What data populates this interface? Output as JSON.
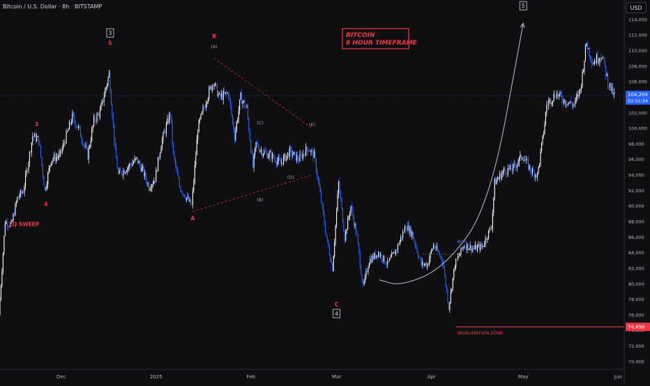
{
  "header": {
    "symbol_title": "Bitcoin / U.S. Dollar · 8h · BITSTAMP",
    "currency": "USD"
  },
  "colors": {
    "background": "#0f0f12",
    "candle_up": "#ffffff",
    "candle_down": "#2962ff",
    "annotation_red": "#f23645",
    "label_gray": "#9598a1",
    "price_badge": "#2962ff",
    "invalidation_badge": "#f23645"
  },
  "chart_data": {
    "type": "candlestick",
    "y_axis": {
      "ticks": [
        70000,
        72000,
        74000,
        76000,
        78000,
        80000,
        82000,
        84000,
        86000,
        88000,
        90000,
        92000,
        94000,
        96000,
        98000,
        100000,
        102000,
        104000,
        106000,
        108000,
        110000,
        112000,
        114000
      ],
      "tick_labels": [
        "70,000",
        "72,000",
        "74,000",
        "76,000",
        "78,000",
        "80,000",
        "82,000",
        "84,000",
        "86,000",
        "88,000",
        "90,000",
        "92,000",
        "94,000",
        "96,000",
        "98,000",
        "100,000",
        "102,000",
        "104,000",
        "106,000",
        "108,000",
        "110,000",
        "112,000",
        "114,000"
      ],
      "range": [
        69000,
        116500
      ]
    },
    "x_axis": {
      "labels": [
        {
          "text": "Dec",
          "date": "2024-12-01"
        },
        {
          "text": "2025",
          "date": "2025-01-01"
        },
        {
          "text": "Feb",
          "date": "2025-02-01"
        },
        {
          "text": "Mar",
          "date": "2025-03-01"
        },
        {
          "text": "Apr",
          "date": "2025-04-01"
        },
        {
          "text": "May",
          "date": "2025-05-01"
        },
        {
          "text": "Jun",
          "date": "2025-06-01"
        }
      ],
      "range": [
        "2024-11-11",
        "2025-06-03"
      ]
    },
    "price_path": [
      {
        "date": "2024-11-11",
        "price": 76000
      },
      {
        "date": "2024-11-13",
        "price": 88000
      },
      {
        "date": "2024-11-15",
        "price": 87500
      },
      {
        "date": "2024-11-17",
        "price": 91000
      },
      {
        "date": "2024-11-19",
        "price": 92000
      },
      {
        "date": "2024-11-22",
        "price": 99000
      },
      {
        "date": "2024-11-24",
        "price": 98500
      },
      {
        "date": "2024-11-26",
        "price": 92000
      },
      {
        "date": "2024-11-28",
        "price": 96000
      },
      {
        "date": "2024-12-01",
        "price": 96500
      },
      {
        "date": "2024-12-05",
        "price": 101500
      },
      {
        "date": "2024-12-07",
        "price": 100000
      },
      {
        "date": "2024-12-10",
        "price": 96500
      },
      {
        "date": "2024-12-12",
        "price": 101000
      },
      {
        "date": "2024-12-14",
        "price": 102000
      },
      {
        "date": "2024-12-17",
        "price": 107000
      },
      {
        "date": "2024-12-19",
        "price": 97000
      },
      {
        "date": "2024-12-20",
        "price": 94000
      },
      {
        "date": "2024-12-23",
        "price": 95000
      },
      {
        "date": "2024-12-26",
        "price": 96000
      },
      {
        "date": "2024-12-28",
        "price": 94500
      },
      {
        "date": "2024-12-30",
        "price": 92500
      },
      {
        "date": "2025-01-01",
        "price": 93500
      },
      {
        "date": "2025-01-03",
        "price": 98000
      },
      {
        "date": "2025-01-06",
        "price": 102000
      },
      {
        "date": "2025-01-07",
        "price": 96500
      },
      {
        "date": "2025-01-09",
        "price": 92500
      },
      {
        "date": "2025-01-13",
        "price": 90000
      },
      {
        "date": "2025-01-15",
        "price": 100000
      },
      {
        "date": "2025-01-18",
        "price": 104000
      },
      {
        "date": "2025-01-20",
        "price": 106000
      },
      {
        "date": "2025-01-22",
        "price": 104000
      },
      {
        "date": "2025-01-25",
        "price": 104500
      },
      {
        "date": "2025-01-27",
        "price": 99000
      },
      {
        "date": "2025-01-29",
        "price": 104000
      },
      {
        "date": "2025-01-31",
        "price": 102500
      },
      {
        "date": "2025-02-02",
        "price": 95000
      },
      {
        "date": "2025-02-03",
        "price": 98000
      },
      {
        "date": "2025-02-05",
        "price": 97000
      },
      {
        "date": "2025-02-08",
        "price": 96500
      },
      {
        "date": "2025-02-11",
        "price": 95500
      },
      {
        "date": "2025-02-14",
        "price": 97000
      },
      {
        "date": "2025-02-17",
        "price": 96000
      },
      {
        "date": "2025-02-20",
        "price": 97500
      },
      {
        "date": "2025-02-22",
        "price": 96500
      },
      {
        "date": "2025-02-24",
        "price": 91500
      },
      {
        "date": "2025-02-26",
        "price": 86000
      },
      {
        "date": "2025-02-28",
        "price": 82000
      },
      {
        "date": "2025-03-02",
        "price": 93000
      },
      {
        "date": "2025-03-04",
        "price": 86000
      },
      {
        "date": "2025-03-06",
        "price": 90000
      },
      {
        "date": "2025-03-08",
        "price": 86000
      },
      {
        "date": "2025-03-10",
        "price": 79500
      },
      {
        "date": "2025-03-12",
        "price": 83000
      },
      {
        "date": "2025-03-15",
        "price": 84000
      },
      {
        "date": "2025-03-18",
        "price": 82500
      },
      {
        "date": "2025-03-21",
        "price": 84500
      },
      {
        "date": "2025-03-24",
        "price": 87500
      },
      {
        "date": "2025-03-26",
        "price": 86500
      },
      {
        "date": "2025-03-29",
        "price": 82500
      },
      {
        "date": "2025-03-31",
        "price": 82500
      },
      {
        "date": "2025-04-02",
        "price": 85000
      },
      {
        "date": "2025-04-05",
        "price": 83000
      },
      {
        "date": "2025-04-07",
        "price": 77000
      },
      {
        "date": "2025-04-09",
        "price": 82500
      },
      {
        "date": "2025-04-12",
        "price": 85000
      },
      {
        "date": "2025-04-15",
        "price": 84500
      },
      {
        "date": "2025-04-18",
        "price": 84800
      },
      {
        "date": "2025-04-21",
        "price": 87500
      },
      {
        "date": "2025-04-22",
        "price": 93000
      },
      {
        "date": "2025-04-25",
        "price": 94500
      },
      {
        "date": "2025-04-28",
        "price": 94800
      },
      {
        "date": "2025-05-01",
        "price": 96500
      },
      {
        "date": "2025-05-04",
        "price": 94500
      },
      {
        "date": "2025-05-06",
        "price": 94000
      },
      {
        "date": "2025-05-08",
        "price": 99500
      },
      {
        "date": "2025-05-09",
        "price": 103000
      },
      {
        "date": "2025-05-12",
        "price": 104500
      },
      {
        "date": "2025-05-15",
        "price": 103500
      },
      {
        "date": "2025-05-18",
        "price": 103000
      },
      {
        "date": "2025-05-20",
        "price": 105000
      },
      {
        "date": "2025-05-22",
        "price": 111000
      },
      {
        "date": "2025-05-24",
        "price": 108500
      },
      {
        "date": "2025-05-27",
        "price": 109500
      },
      {
        "date": "2025-05-29",
        "price": 106000
      },
      {
        "date": "2025-05-31",
        "price": 104204
      }
    ],
    "current_price": {
      "value": 104204,
      "label": "104,204",
      "countdown": "02:51:34"
    },
    "invalidation_level": {
      "value": 74456,
      "label": "74,456",
      "text": "INVALIDATION ZONE",
      "start_date": "2025-04-09"
    },
    "annotations": [
      {
        "text": "LQ SWEEP",
        "date": "2024-11-14",
        "price": 87400,
        "color": "red"
      },
      {
        "text": "3",
        "date": "2024-11-23",
        "price": 100300,
        "color": "red"
      },
      {
        "text": "4",
        "date": "2024-11-26",
        "price": 90000,
        "color": "red"
      },
      {
        "text": "3",
        "date": "2024-12-17",
        "price": 112000,
        "color": "boxed"
      },
      {
        "text": "5",
        "date": "2024-12-17",
        "price": 110700,
        "color": "red"
      },
      {
        "text": "A",
        "date": "2025-01-13",
        "price": 88200,
        "color": "red"
      },
      {
        "text": "B",
        "date": "2025-01-20",
        "price": 111600,
        "color": "red"
      },
      {
        "text": "(A)",
        "date": "2025-01-20",
        "price": 110300,
        "color": "gray"
      },
      {
        "text": "(C)",
        "date": "2025-02-04",
        "price": 100500,
        "color": "gray"
      },
      {
        "text": "(B)",
        "date": "2025-02-04",
        "price": 90600,
        "color": "gray"
      },
      {
        "text": "(D)",
        "date": "2025-02-14",
        "price": 93500,
        "color": "gray"
      },
      {
        "text": "(E)",
        "date": "2025-02-21",
        "price": 100300,
        "color": "gray"
      },
      {
        "text": "C",
        "date": "2025-03-01",
        "price": 77100,
        "color": "red"
      },
      {
        "text": "4",
        "date": "2025-03-01",
        "price": 75900,
        "color": "boxed"
      },
      {
        "text": "BOS",
        "date": "2025-04-11",
        "price": 85200,
        "color": "blue"
      },
      {
        "text": "5",
        "date": "2025-05-01",
        "price": 115500,
        "color": "boxed"
      }
    ],
    "trendlines": [
      {
        "style": "dashed-red",
        "from": {
          "date": "2025-01-20",
          "price": 109000
        },
        "to": {
          "date": "2025-02-21",
          "price": 100000
        }
      },
      {
        "style": "dashed-red",
        "from": {
          "date": "2025-01-13",
          "price": 89300
        },
        "to": {
          "date": "2025-02-21",
          "price": 94000
        }
      }
    ],
    "bos_line": {
      "from": {
        "date": "2025-03-29",
        "price": 83800
      },
      "to": {
        "date": "2025-04-10",
        "price": 83800
      }
    },
    "projection_curve": [
      {
        "date": "2025-03-15",
        "price": 80500
      },
      {
        "date": "2025-03-22",
        "price": 79700
      },
      {
        "date": "2025-04-05",
        "price": 82000
      },
      {
        "date": "2025-04-20",
        "price": 90000
      },
      {
        "date": "2025-05-01",
        "price": 113500
      }
    ],
    "title_box": {
      "line1": "BITCOIN",
      "line2": "8 HOUR TIMEFRAME"
    }
  }
}
